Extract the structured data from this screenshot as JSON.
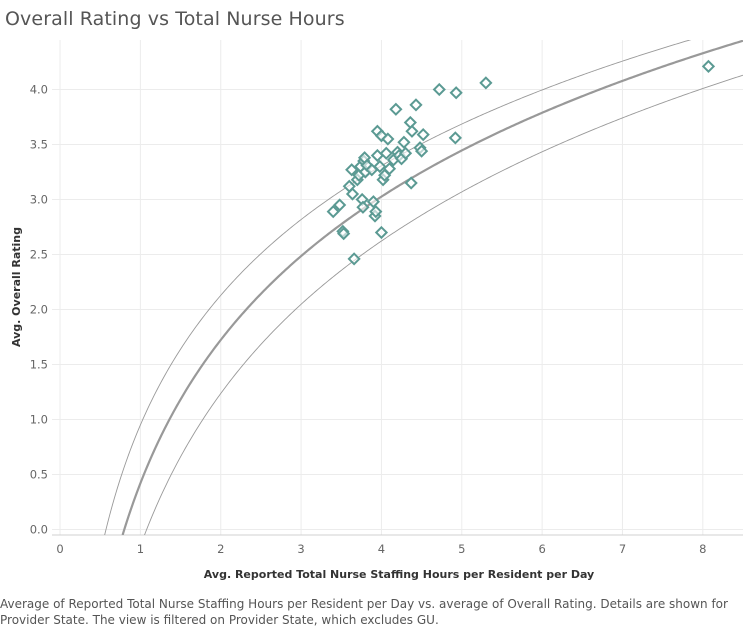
{
  "title": "Overall Rating vs Total Nurse Hours",
  "caption": "Average of Reported Total Nurse Staffing Hours per Resident per Day vs. average of Overall Rating.  Details are shown for Provider State. The view is filtered on Provider State, which excludes GU.",
  "chart_data": {
    "type": "scatter",
    "title": "Overall Rating vs Total Nurse Hours",
    "xlabel": "Avg. Reported Total Nurse Staffing Hours per Resident per Day",
    "ylabel": "Avg. Overall Rating",
    "xlim": [
      -0.1,
      8.5
    ],
    "ylim": [
      -0.05,
      4.45
    ],
    "x_ticks": [
      "0",
      "1",
      "2",
      "3",
      "4",
      "5",
      "6",
      "7",
      "8"
    ],
    "y_ticks": [
      "0.0",
      "0.5",
      "1.0",
      "1.5",
      "2.0",
      "2.5",
      "3.0",
      "3.5",
      "4.0"
    ],
    "grid": true,
    "marker": "diamond",
    "point_color": "#5b9a93",
    "trend_color": "#999999",
    "trend": {
      "model": "logarithmic",
      "a": 0.42,
      "b": 1.88,
      "ci_lower": {
        "a": -0.15,
        "b": 2.0
      },
      "ci_upper": {
        "a": 0.95,
        "b": 1.7
      }
    },
    "points": [
      {
        "x": 3.4,
        "y": 2.89
      },
      {
        "x": 3.48,
        "y": 2.95
      },
      {
        "x": 3.52,
        "y": 2.71
      },
      {
        "x": 3.53,
        "y": 2.69
      },
      {
        "x": 3.6,
        "y": 3.12
      },
      {
        "x": 3.63,
        "y": 3.27
      },
      {
        "x": 3.64,
        "y": 3.05
      },
      {
        "x": 3.66,
        "y": 2.46
      },
      {
        "x": 3.7,
        "y": 3.18
      },
      {
        "x": 3.72,
        "y": 3.22
      },
      {
        "x": 3.74,
        "y": 3.3
      },
      {
        "x": 3.76,
        "y": 3.0
      },
      {
        "x": 3.77,
        "y": 2.93
      },
      {
        "x": 3.78,
        "y": 3.35
      },
      {
        "x": 3.79,
        "y": 3.38
      },
      {
        "x": 3.8,
        "y": 3.25
      },
      {
        "x": 3.82,
        "y": 3.31
      },
      {
        "x": 3.88,
        "y": 3.27
      },
      {
        "x": 3.9,
        "y": 2.98
      },
      {
        "x": 3.92,
        "y": 2.85
      },
      {
        "x": 3.93,
        "y": 2.89
      },
      {
        "x": 3.95,
        "y": 3.62
      },
      {
        "x": 3.95,
        "y": 3.4
      },
      {
        "x": 3.98,
        "y": 3.3
      },
      {
        "x": 4.0,
        "y": 3.58
      },
      {
        "x": 4.0,
        "y": 2.7
      },
      {
        "x": 4.02,
        "y": 3.18
      },
      {
        "x": 4.04,
        "y": 3.22
      },
      {
        "x": 4.06,
        "y": 3.42
      },
      {
        "x": 4.08,
        "y": 3.55
      },
      {
        "x": 4.1,
        "y": 3.28
      },
      {
        "x": 4.15,
        "y": 3.36
      },
      {
        "x": 4.18,
        "y": 3.82
      },
      {
        "x": 4.2,
        "y": 3.43
      },
      {
        "x": 4.22,
        "y": 3.4
      },
      {
        "x": 4.25,
        "y": 3.37
      },
      {
        "x": 4.28,
        "y": 3.52
      },
      {
        "x": 4.3,
        "y": 3.42
      },
      {
        "x": 4.36,
        "y": 3.7
      },
      {
        "x": 4.37,
        "y": 3.15
      },
      {
        "x": 4.38,
        "y": 3.62
      },
      {
        "x": 4.43,
        "y": 3.86
      },
      {
        "x": 4.48,
        "y": 3.47
      },
      {
        "x": 4.5,
        "y": 3.44
      },
      {
        "x": 4.52,
        "y": 3.59
      },
      {
        "x": 4.72,
        "y": 4.0
      },
      {
        "x": 4.92,
        "y": 3.56
      },
      {
        "x": 4.93,
        "y": 3.97
      },
      {
        "x": 5.3,
        "y": 4.06
      },
      {
        "x": 8.07,
        "y": 4.21
      }
    ]
  }
}
